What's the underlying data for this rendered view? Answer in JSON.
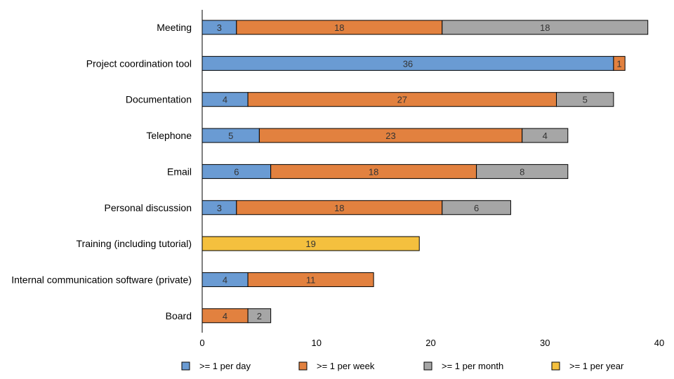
{
  "chart_data": {
    "type": "bar",
    "orientation": "horizontal",
    "stacked": true,
    "categories": [
      "Meeting",
      "Project coordination tool",
      "Documentation",
      "Telephone",
      "Email",
      "Personal discussion",
      "Training (including tutorial)",
      "Internal communication software (private)",
      "Board"
    ],
    "series": [
      {
        "name": ">= 1 per day",
        "color": "#6a9bd3",
        "values": [
          3,
          36,
          4,
          5,
          6,
          3,
          0,
          4,
          0
        ]
      },
      {
        "name": ">= 1 per week",
        "color": "#e2813f",
        "values": [
          18,
          1,
          27,
          23,
          18,
          18,
          0,
          11,
          4
        ]
      },
      {
        "name": ">= 1 per month",
        "color": "#a6a6a6",
        "values": [
          18,
          0,
          5,
          4,
          8,
          6,
          0,
          0,
          2
        ]
      },
      {
        "name": ">= 1 per year",
        "color": "#f4c03e",
        "values": [
          0,
          0,
          0,
          0,
          0,
          0,
          19,
          0,
          0
        ]
      }
    ],
    "xlim": [
      0,
      40
    ],
    "xticks": [
      0,
      10,
      20,
      30,
      40
    ],
    "title": "",
    "xlabel": "",
    "ylabel": "",
    "grid": false,
    "legend_position": "bottom"
  }
}
